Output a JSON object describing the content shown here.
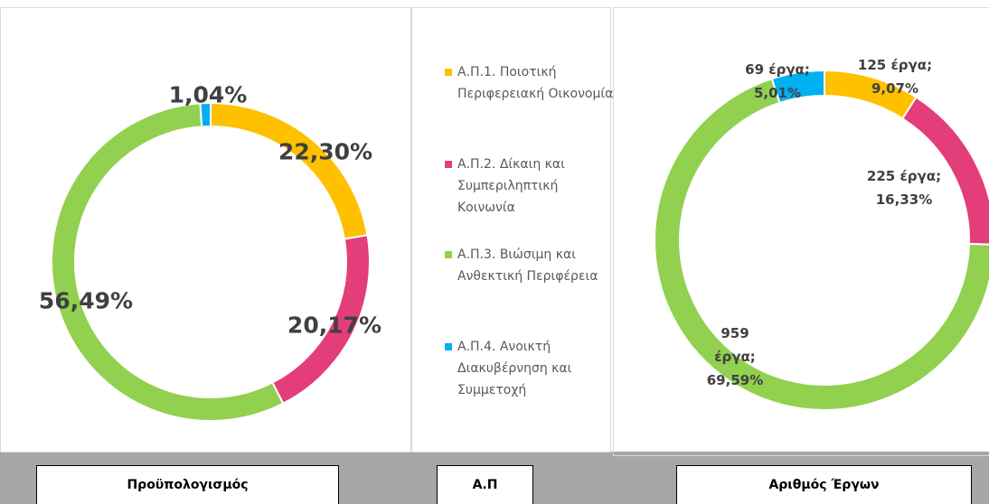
{
  "chart_data": {
    "type": "donut",
    "legend_title": "Α.Π",
    "categories": [
      "Α.Π.1. Ποιοτική Περιφερειακή Οικονομία",
      "Α.Π.2. Δίκαιη και Συμπεριληπτική Κοινωνία",
      "Α.Π.3. Βιώσιμη και Ανθεκτική Περιφέρεια",
      "Α.Π.4. Ανοικτή Διακυβέρνηση και Συμμετοχή"
    ],
    "colors": [
      "#ffc000",
      "#e33d7a",
      "#92d050",
      "#00b0f0"
    ],
    "series": [
      {
        "name": "Προϋπολογισμός",
        "values": [
          22.3,
          20.17,
          56.49,
          1.04
        ],
        "value_labels": [
          "22,30%",
          "20,17%",
          "56,49%",
          "1,04%"
        ]
      },
      {
        "name": "Αριθμός Έργων",
        "values": [
          125,
          225,
          959,
          69
        ],
        "value_labels": [
          "125 έργα; 9,07%",
          "225 έργα; 16,33%",
          "959 έργα; 69,59%",
          "69 έργα; 5,01%"
        ]
      }
    ]
  }
}
